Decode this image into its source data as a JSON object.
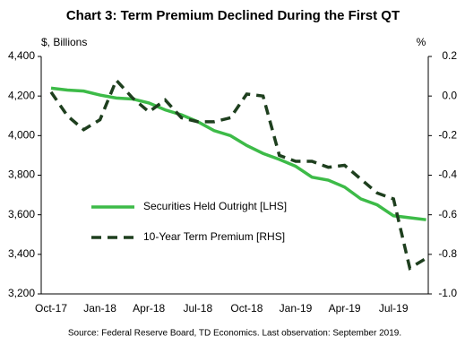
{
  "chart_data": {
    "type": "line",
    "title": "Chart 3: Term Premium Declined During the First QT",
    "y_label": "$, Billions",
    "y2_label": "%",
    "source": "Source: Federal Reserve Board, TD Economics. Last observation: September 2019.",
    "categories": [
      "Oct-17",
      null,
      null,
      "Jan-18",
      null,
      null,
      "Apr-18",
      null,
      null,
      "Jul-18",
      null,
      null,
      "Oct-18",
      null,
      null,
      "Jan-19",
      null,
      null,
      "Apr-19",
      null,
      null,
      "Jul-19",
      null,
      null
    ],
    "series": [
      {
        "name": "Securities Held Outright [LHS]",
        "color": "#3dbb48",
        "dash": false,
        "values": [
          4240,
          4230,
          4225,
          4205,
          4190,
          4185,
          4165,
          4130,
          4105,
          4070,
          4025,
          4000,
          3950,
          3910,
          3880,
          3845,
          3790,
          3775,
          3740,
          3680,
          3650,
          3595,
          3585,
          3575
        ]
      },
      {
        "name": "10-Year Term Premium [RHS]",
        "color": "#1e3f1e",
        "dash": true,
        "axis": "y2",
        "values": [
          0.02,
          -0.1,
          -0.17,
          -0.12,
          0.08,
          -0.01,
          -0.08,
          -0.02,
          -0.11,
          -0.13,
          -0.13,
          -0.11,
          0.01,
          0.0,
          -0.3,
          -0.33,
          -0.33,
          -0.36,
          -0.35,
          -0.42,
          -0.49,
          -0.52,
          -0.87,
          -0.82
        ]
      }
    ],
    "ylim": [
      3200,
      4400
    ],
    "yticks": [
      {
        "value": 3200,
        "label": "3,200"
      },
      {
        "value": 3400,
        "label": "3,400"
      },
      {
        "value": 3600,
        "label": "3,600"
      },
      {
        "value": 3800,
        "label": "3,800"
      },
      {
        "value": 4000,
        "label": "4,000"
      },
      {
        "value": 4200,
        "label": "4,200"
      },
      {
        "value": 4400,
        "label": "4,400"
      }
    ],
    "y2lim": [
      -1.0,
      0.2
    ],
    "y2ticks": [
      {
        "value": -1.0,
        "label": "-1.0"
      },
      -0.8,
      -0.6,
      -0.4,
      -0.2,
      {
        "value": 0,
        "label": "0.0"
      },
      0.2
    ]
  }
}
